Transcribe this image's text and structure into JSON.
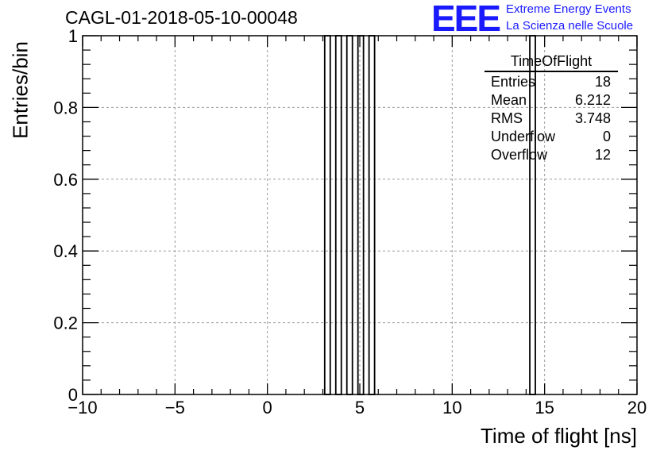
{
  "title": "CAGL-01-2018-05-10-00048",
  "logo": {
    "mark": "EEE",
    "line1": "Extreme Energy Events",
    "line2": "La Scienza nelle Scuole",
    "color": "#1a1aff"
  },
  "stats": {
    "name": "TimeOfFlight",
    "rows": [
      {
        "label": "Entries",
        "value": "18"
      },
      {
        "label": "Mean",
        "value": "6.212"
      },
      {
        "label": "RMS",
        "value": "3.748"
      },
      {
        "label": "Underflow",
        "value": "0"
      },
      {
        "label": "Overflow",
        "value": "12"
      }
    ]
  },
  "chart_data": {
    "type": "bar",
    "xlabel": "Time of flight [ns]",
    "ylabel": "Entries/bin",
    "xlim": [
      -10,
      20
    ],
    "ylim": [
      0,
      1
    ],
    "grid": true,
    "x_ticks": [
      -10,
      -5,
      0,
      5,
      10,
      15,
      20
    ],
    "y_ticks": [
      0,
      0.2,
      0.4,
      0.6,
      0.8,
      1
    ],
    "y_tick_labels": [
      "0",
      "0.2",
      "0.4",
      "0.6",
      "0.8",
      "1"
    ],
    "x_tick_labels": [
      "−10",
      "−5",
      "0",
      "5",
      "10",
      "15",
      "20"
    ],
    "bin_width": 0.3,
    "bins": [
      {
        "x0": 3.1,
        "x1": 3.4,
        "count": 1
      },
      {
        "x0": 3.4,
        "x1": 3.7,
        "count": 0
      },
      {
        "x0": 3.7,
        "x1": 4.0,
        "count": 1
      },
      {
        "x0": 4.0,
        "x1": 4.3,
        "count": 0
      },
      {
        "x0": 4.3,
        "x1": 4.6,
        "count": 1
      },
      {
        "x0": 4.6,
        "x1": 4.9,
        "count": 0
      },
      {
        "x0": 4.9,
        "x1": 5.2,
        "count": 1
      },
      {
        "x0": 5.2,
        "x1": 5.5,
        "count": 0
      },
      {
        "x0": 5.5,
        "x1": 5.8,
        "count": 1
      },
      {
        "x0": 14.2,
        "x1": 14.5,
        "count": 1
      }
    ],
    "line_color": "#000000"
  }
}
